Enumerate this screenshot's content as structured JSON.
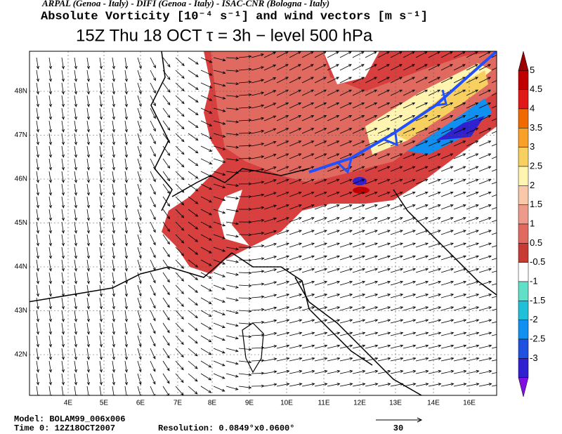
{
  "header": {
    "line1": "ARPAL (Genoa - Italy)  -  DIFI (Genoa - Italy)  -  ISAC-CNR (Bologna - Italy)",
    "line2": "Absolute Vorticity [10⁻⁴ s⁻¹] and wind vectors [m s⁻¹]",
    "line3": "15Z Thu 18 OCT  τ = 3h  −  level 500 hPa"
  },
  "map": {
    "lon_labels": [
      "4E",
      "5E",
      "6E",
      "7E",
      "8E",
      "9E",
      "10E",
      "11E",
      "12E",
      "13E",
      "14E",
      "16E"
    ],
    "lat_labels": [
      "48N",
      "47N",
      "46N",
      "45N",
      "44N",
      "43N",
      "42N"
    ]
  },
  "colorbar": {
    "labels": [
      "5",
      "4.5",
      "4",
      "3.5",
      "3",
      "2.5",
      "2",
      "1.5",
      "1",
      "0.5",
      "-0.5",
      "-1",
      "-1.5",
      "-2",
      "-2.5",
      "-3"
    ],
    "colors": [
      "#9c0000",
      "#c00000",
      "#e01818",
      "#f06a00",
      "#f8a028",
      "#f8d060",
      "#fff4b0",
      "#f8c8a8",
      "#ec9a8a",
      "#e06a60",
      "#c83a34",
      "#ffffff",
      "#60e0c8",
      "#20c0d8",
      "#1090f0",
      "#2050e0",
      "#3020d0",
      "#8010e0"
    ]
  },
  "footer": {
    "model": "Model: BOLAM99_006x006",
    "time": "Time 0: 12Z18OCT2007",
    "resolution": "Resolution: 0.0849°x0.0600°",
    "vector_ref": "30"
  }
}
